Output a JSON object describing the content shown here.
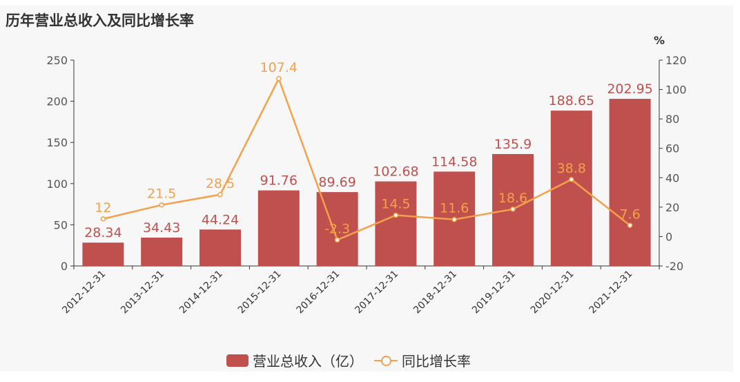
{
  "chart_data": {
    "type": "bar+line",
    "title": "历年营业总收入及同比增长率",
    "categories": [
      "2012-12-31",
      "2013-12-31",
      "2014-12-31",
      "2015-12-31",
      "2016-12-31",
      "2017-12-31",
      "2018-12-31",
      "2019-12-31",
      "2020-12-31",
      "2021-12-31"
    ],
    "series": [
      {
        "name": "营业总收入（亿）",
        "type": "bar",
        "axis": "left",
        "color": "#c0504d",
        "values": [
          28.34,
          34.43,
          44.24,
          91.76,
          89.69,
          102.68,
          114.58,
          135.9,
          188.65,
          202.95
        ],
        "labels": [
          "28.34",
          "34.43",
          "44.24",
          "91.76",
          "89.69",
          "102.68",
          "114.58",
          "135.9",
          "188.65",
          "202.95"
        ]
      },
      {
        "name": "同比增长率",
        "type": "line",
        "axis": "right",
        "color": "#f5a04a",
        "values": [
          12,
          21.5,
          28.5,
          107.4,
          -2.3,
          14.5,
          11.6,
          18.6,
          38.8,
          7.6
        ],
        "labels": [
          "12",
          "21.5",
          "28.5",
          "107.4",
          "-2.3",
          "14.5",
          "11.6",
          "18.6",
          "38.8",
          "7.6"
        ]
      }
    ],
    "y_left": {
      "range": [
        0,
        250
      ],
      "ticks": [
        "0",
        "50",
        "100",
        "150",
        "200",
        "250"
      ]
    },
    "y_right": {
      "label": "%",
      "range": [
        -20,
        120
      ],
      "ticks": [
        "-20",
        "0",
        "20",
        "40",
        "60",
        "80",
        "100",
        "120"
      ]
    },
    "grid": false,
    "legend_position": "bottom"
  }
}
